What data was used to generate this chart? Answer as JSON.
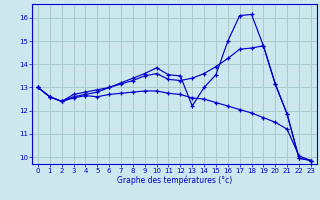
{
  "xlabel": "Graphe des températures (°c)",
  "background_color": "#cce8ee",
  "line_color": "#0000cc",
  "grid_color": "#aacccc",
  "xlim": [
    -0.5,
    23.5
  ],
  "ylim": [
    9.7,
    16.6
  ],
  "yticks": [
    10,
    11,
    12,
    13,
    14,
    15,
    16
  ],
  "xticks": [
    0,
    1,
    2,
    3,
    4,
    5,
    6,
    7,
    8,
    9,
    10,
    11,
    12,
    13,
    14,
    15,
    16,
    17,
    18,
    19,
    20,
    21,
    22,
    23
  ],
  "series": [
    {
      "x": [
        0,
        1,
        2,
        3,
        4,
        5,
        6,
        7,
        8,
        9,
        10,
        11,
        12,
        13,
        14,
        15,
        16,
        17,
        18,
        19,
        20,
        21,
        22,
        23
      ],
      "y": [
        13.0,
        12.6,
        12.4,
        12.55,
        12.65,
        12.6,
        12.7,
        12.75,
        12.8,
        12.85,
        12.85,
        12.75,
        12.7,
        12.55,
        12.5,
        12.35,
        12.2,
        12.05,
        11.9,
        11.7,
        11.5,
        11.2,
        10.05,
        9.85
      ],
      "marker": "+"
    },
    {
      "x": [
        0,
        1,
        2,
        3,
        4,
        5,
        6,
        7,
        8,
        9,
        10,
        11,
        12,
        13,
        14,
        15,
        16,
        17,
        18,
        19,
        20,
        21,
        22,
        23
      ],
      "y": [
        13.0,
        12.6,
        12.4,
        12.6,
        12.7,
        12.8,
        13.0,
        13.2,
        13.4,
        13.6,
        13.85,
        13.55,
        13.5,
        12.2,
        13.0,
        13.55,
        15.0,
        16.1,
        16.15,
        14.8,
        13.15,
        11.85,
        9.95,
        9.85
      ],
      "marker": "+"
    },
    {
      "x": [
        0,
        1,
        2,
        3,
        4,
        5,
        6,
        7,
        8,
        9,
        10,
        11,
        12,
        13,
        14,
        15,
        16,
        17,
        18,
        19,
        20,
        21,
        22,
        23
      ],
      "y": [
        13.0,
        12.6,
        12.4,
        12.7,
        12.8,
        12.9,
        13.0,
        13.15,
        13.3,
        13.5,
        13.6,
        13.35,
        13.3,
        13.4,
        13.6,
        13.9,
        14.25,
        14.65,
        14.7,
        14.8,
        13.15,
        11.85,
        9.95,
        9.85
      ],
      "marker": "+"
    }
  ]
}
